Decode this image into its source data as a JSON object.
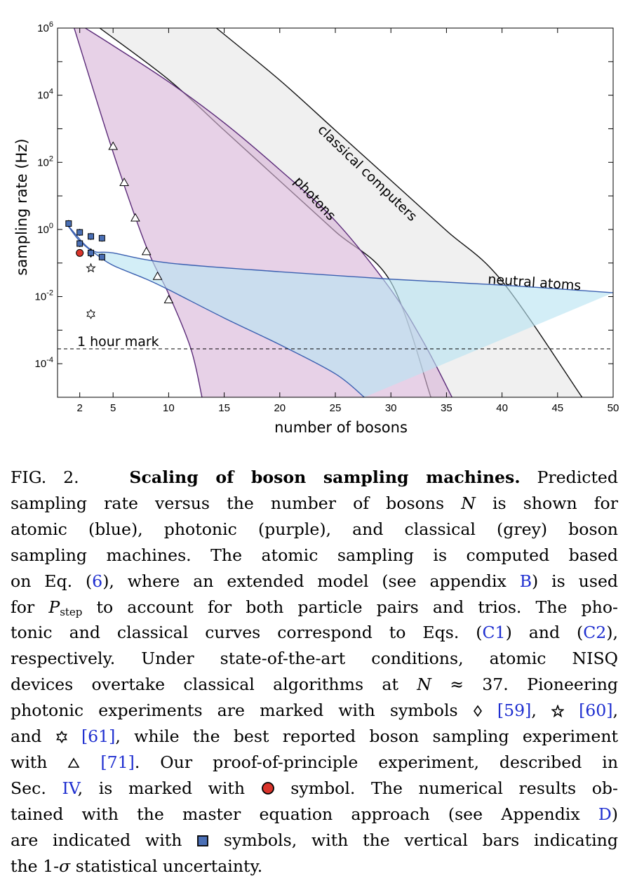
{
  "chart_data": {
    "type": "area",
    "xlabel": "number of bosons",
    "ylabel": "sampling rate (Hz)",
    "xlim": [
      0,
      50
    ],
    "ylim_log10": [
      -5,
      6
    ],
    "yscale": "log",
    "x_ticks": [
      2,
      5,
      10,
      15,
      20,
      25,
      30,
      35,
      40,
      45,
      50
    ],
    "y_ticks": [
      {
        "base": "10",
        "exp": "6",
        "value": 1000000
      },
      {
        "base": "10",
        "exp": "4",
        "value": 10000
      },
      {
        "base": "10",
        "exp": "2",
        "value": 100
      },
      {
        "base": "10",
        "exp": "0",
        "value": 1
      },
      {
        "base": "10",
        "exp": "-2",
        "value": 0.01
      },
      {
        "base": "10",
        "exp": "-4",
        "value": 0.0001
      }
    ],
    "regions": [
      {
        "name": "classical computers",
        "color": "#e6e6e6",
        "lower": [
          [
            3.8,
            1000000
          ],
          [
            10,
            29000
          ],
          [
            15,
            900
          ],
          [
            20,
            28
          ],
          [
            25,
            0.87
          ],
          [
            30,
            0.027
          ],
          [
            33.6,
            1e-05
          ]
        ],
        "upper": [
          [
            14.3,
            1000000
          ],
          [
            20,
            28000
          ],
          [
            25,
            900
          ],
          [
            30,
            29
          ],
          [
            35,
            0.92
          ],
          [
            40,
            0.029
          ],
          [
            47.2,
            1e-05
          ]
        ]
      },
      {
        "name": "photons",
        "color": "#d9b4d9",
        "lower": [
          [
            1.5,
            1000000
          ],
          [
            5,
            200
          ],
          [
            8,
            0.3
          ],
          [
            10,
            0.012
          ],
          [
            12,
            0.00028
          ],
          [
            13,
            1e-05
          ]
        ],
        "upper": [
          [
            2.5,
            1000000
          ],
          [
            5,
            300000
          ],
          [
            10,
            25000
          ],
          [
            15,
            1500
          ],
          [
            20,
            60
          ],
          [
            25,
            1.8
          ],
          [
            30,
            0.016
          ],
          [
            33,
            0.0004
          ],
          [
            35.5,
            1e-05
          ]
        ]
      },
      {
        "name": "neutral atoms",
        "color": "#b8e4f2",
        "upper": [
          [
            0.8,
            1.5
          ],
          [
            3,
            0.25
          ],
          [
            5,
            0.2
          ],
          [
            10,
            0.1
          ],
          [
            20,
            0.055
          ],
          [
            30,
            0.033
          ],
          [
            40,
            0.022
          ],
          [
            50,
            0.013
          ]
        ],
        "lower": [
          [
            0.8,
            1.5
          ],
          [
            2,
            0.45
          ],
          [
            3.5,
            0.18
          ],
          [
            5,
            0.085
          ],
          [
            8,
            0.033
          ],
          [
            10,
            0.016
          ],
          [
            15,
            0.0023
          ],
          [
            20,
            0.00037
          ],
          [
            25,
            5e-05
          ],
          [
            27.6,
            1e-05
          ]
        ]
      }
    ],
    "one_hour_rate": 0.000278,
    "markers": [
      {
        "series": "diamond",
        "color": "#ffffff",
        "points": [
          [
            3,
            0.2
          ]
        ]
      },
      {
        "series": "star",
        "color": "#ffffff",
        "points": [
          [
            3,
            0.07
          ]
        ]
      },
      {
        "series": "hexagram",
        "color": "#ffffff",
        "points": [
          [
            3,
            0.003
          ]
        ]
      },
      {
        "series": "triangle",
        "color": "#ffffff",
        "points": [
          [
            5,
            300
          ],
          [
            6,
            25
          ],
          [
            7,
            2.2
          ],
          [
            8,
            0.22
          ],
          [
            9,
            0.04
          ],
          [
            10,
            0.008
          ]
        ]
      },
      {
        "series": "circle",
        "color": "#d9342b",
        "points": [
          [
            2,
            0.2
          ]
        ]
      },
      {
        "series": "square",
        "color": "#4a6fb5",
        "points": [
          [
            1,
            1.5
          ],
          [
            2,
            0.82
          ],
          [
            2,
            0.38
          ],
          [
            3,
            0.62
          ],
          [
            3,
            0.2
          ],
          [
            4,
            0.55
          ],
          [
            4,
            0.15
          ]
        ]
      }
    ],
    "annotations": [
      {
        "text": "classical computers"
      },
      {
        "text": "photons"
      },
      {
        "text": "neutral atoms"
      },
      {
        "text": "1 hour mark"
      }
    ]
  },
  "caption": {
    "l1": {
      "fig": "FIG. 2.",
      "title": "Scaling of boson sampling machines.",
      "rest": " Predicted"
    },
    "l2": {
      "a": "sampling rate versus the number of bosons ",
      "var": "N",
      "b": " is shown for"
    },
    "l3": "atomic (blue), photonic (purple), and classical (grey) boson",
    "l4": "sampling machines. The atomic sampling is computed based",
    "l5": {
      "a": "on Eq. (",
      "ref1": "6",
      "b": "), where an extended model (see appendix ",
      "ref2": "B",
      "c": ") is used"
    },
    "l6": {
      "a": "for ",
      "p": "P",
      "sub": "step",
      "b": " to account for both particle pairs and trios. The pho-"
    },
    "l7": {
      "a": "tonic and classical curves correspond to Eqs. (",
      "ref1": "C1",
      "b": ") and (",
      "ref2": "C2",
      "c": "),"
    },
    "l8": "respectively. Under state-of-the-art conditions, atomic NISQ",
    "l9": {
      "a": "devices overtake classical algorithms at ",
      "var": "N",
      "b": " ≈ 37. Pioneering"
    },
    "l10": {
      "a": "photonic experiments are marked with symbols ",
      "ref1": "[59]",
      "b": ", ",
      "ref2": "[60]",
      "c": ","
    },
    "l11": {
      "a": "and ",
      "ref1": "[61]",
      "b": ", while the best reported boson sampling experiment"
    },
    "l12": {
      "a": "with ",
      "ref1": "[71]",
      "b": ". Our proof-of-principle experiment, described in"
    },
    "l13": {
      "a": "Sec. ",
      "ref1": "IV",
      "b": ", is marked with ",
      "c": " symbol. The numerical results ob-"
    },
    "l14": {
      "a": "tained with the master equation approach (see Appendix ",
      "ref1": "D",
      "b": ")"
    },
    "l15": {
      "a": "are indicated with ",
      "b": " symbols, with the vertical bars indicating"
    },
    "l16": {
      "a": "the 1-",
      "var": "σ",
      "b": " statistical uncertainty."
    }
  }
}
